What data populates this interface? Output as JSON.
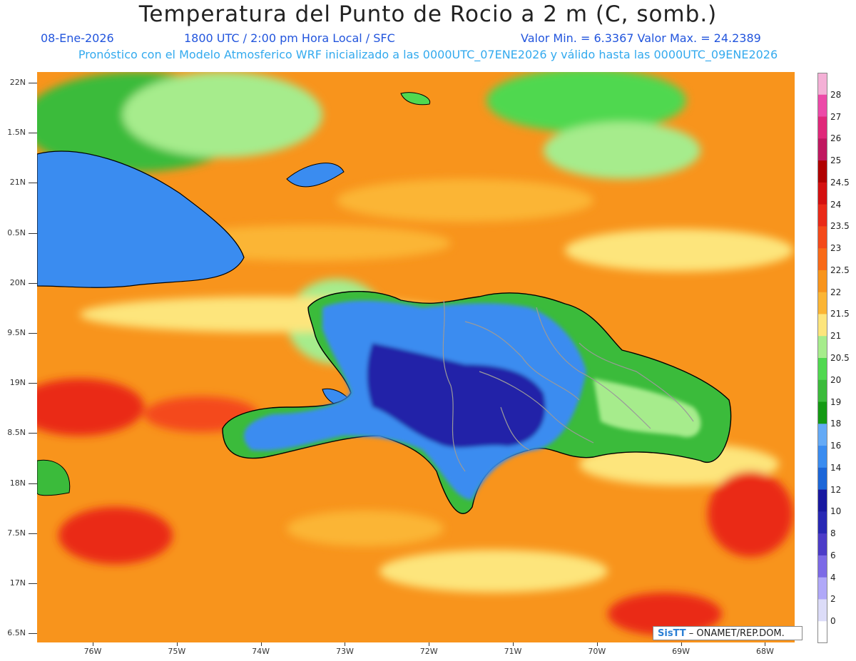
{
  "header": {
    "title": "Temperatura del Punto de Rocio a 2 m (C, somb.)",
    "date": "08-Ene-2026",
    "time": "1800 UTC / 2:00 pm Hora Local / SFC",
    "minmax": "Valor Min. = 6.3367   Valor Max. = 24.2389",
    "model_info": "Pronóstico con el Modelo Atmosferico WRF inicializado a las 0000UTC_07ENE2026 y válido hasta las  0000UTC_09ENE2026"
  },
  "axes": {
    "y_labels": [
      "22N",
      "1.5N",
      "21N",
      "0.5N",
      "20N",
      "9.5N",
      "19N",
      "8.5N",
      "18N",
      "7.5N",
      "17N",
      "6.5N"
    ],
    "x_labels": [
      "76W",
      "75W",
      "74W",
      "73W",
      "72W",
      "71W",
      "70W",
      "69W",
      "68W"
    ]
  },
  "colorbar": {
    "labels": [
      "28",
      "27",
      "26",
      "25",
      "24.5",
      "24",
      "23.5",
      "23",
      "22.5",
      "22",
      "21.5",
      "21",
      "20.5",
      "20",
      "19",
      "18",
      "16",
      "14",
      "12",
      "10",
      "8",
      "6",
      "4",
      "2",
      "0"
    ],
    "colors": [
      "#f4b0d6",
      "#ec4aa8",
      "#e0287a",
      "#c01860",
      "#b00000",
      "#d41010",
      "#ea2a18",
      "#f44a1a",
      "#f86a18",
      "#f8941c",
      "#fbb534",
      "#fde57c",
      "#a6ec8c",
      "#50d850",
      "#3bbb3b",
      "#149a14",
      "#64aaf6",
      "#3a8cf0",
      "#1c66d8",
      "#1818a0",
      "#2828b4",
      "#4c3cc8",
      "#7c6ae6",
      "#b0a8f8",
      "#dcdcf8",
      "#ffffff"
    ]
  },
  "legend_colors": {
    "ocean_orange": "#f8941c",
    "land_blue": "#3a8cf0",
    "land_deep": "#2424a8",
    "land_green": "#3bbb3b",
    "border": "#9a9a9a"
  },
  "credit": {
    "brand": "SisTT",
    "org": " – ONAMET/REP.DOM."
  }
}
